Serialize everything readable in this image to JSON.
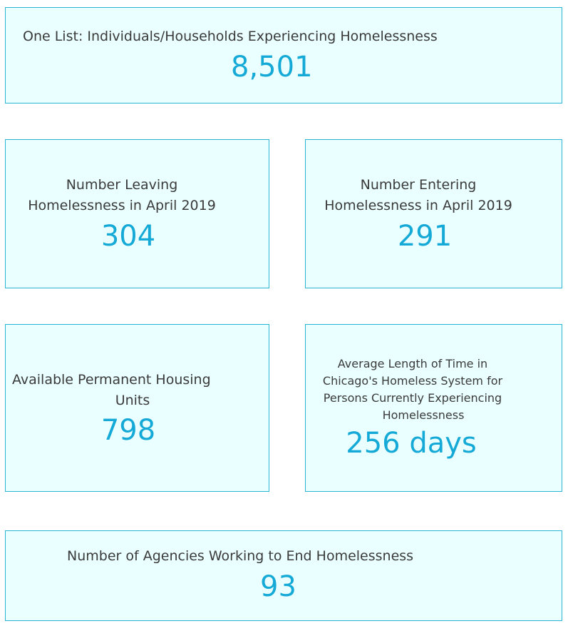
{
  "cards": {
    "one_list": {
      "label": "One List: Individuals/Households Experiencing Homelessness",
      "value": "8,501"
    },
    "leaving": {
      "label_line1": "Number Leaving",
      "label_line2": "Homelessness in April 2019",
      "value": "304"
    },
    "entering": {
      "label_line1": "Number Entering",
      "label_line2": "Homelessness in April 2019",
      "value": "291"
    },
    "permanent_housing": {
      "label_line1": "Available Permanent Housing",
      "label_line2": "Units",
      "value": "798"
    },
    "avg_length": {
      "label_line1": "Average Length of Time in",
      "label_line2": "Chicago's Homeless System for",
      "label_line3": "Persons Currently Experiencing",
      "label_line4": "Homelessness",
      "value": "256 days"
    },
    "agencies": {
      "label": "Number of Agencies Working to End Homelessness",
      "value": "93"
    }
  },
  "colors": {
    "card_background": "#eaffff",
    "card_border": "#29b5d3",
    "value_text": "#14a9d6",
    "label_text": "#3a3a3a"
  }
}
